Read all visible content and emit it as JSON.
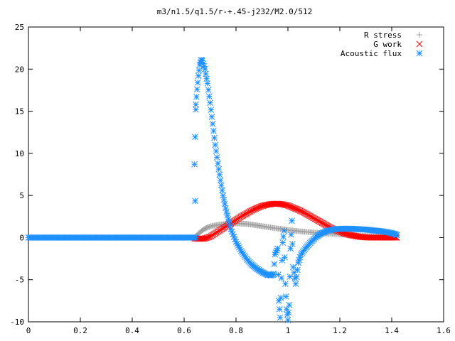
{
  "chart_data": {
    "type": "scatter",
    "title": "m3/n1.5/q1.5/r-+.45-j232/M2.0/512",
    "xlabel": "",
    "ylabel": "",
    "xlim": [
      0,
      1.6
    ],
    "ylim": [
      -10,
      25
    ],
    "xticks": [
      0,
      0.2,
      0.4,
      0.6,
      0.8,
      1,
      1.2,
      1.4,
      1.6
    ],
    "xtick_labels": [
      "0",
      "0.2",
      "0.4",
      "0.6",
      "0.8",
      "1",
      "1.2",
      "1.4",
      "1.6"
    ],
    "yticks": [
      -10,
      -5,
      0,
      5,
      10,
      15,
      20,
      25
    ],
    "ytick_labels": [
      "-10",
      "-5",
      "0",
      "5",
      "10",
      "15",
      "20",
      "25"
    ],
    "grid": false,
    "legend_position": "top-right",
    "series": [
      {
        "name": "R stress",
        "marker": "plus",
        "color": "#a0a0a0",
        "points": [
          [
            0.64,
            0
          ],
          [
            0.65,
            0.3
          ],
          [
            0.66,
            0.6
          ],
          [
            0.67,
            0.85
          ],
          [
            0.68,
            1.05
          ],
          [
            0.69,
            1.2
          ],
          [
            0.7,
            1.32
          ],
          [
            0.72,
            1.45
          ],
          [
            0.74,
            1.55
          ],
          [
            0.76,
            1.62
          ],
          [
            0.78,
            1.67
          ],
          [
            0.8,
            1.68
          ],
          [
            0.82,
            1.67
          ],
          [
            0.84,
            1.62
          ],
          [
            0.86,
            1.55
          ],
          [
            0.88,
            1.45
          ],
          [
            0.9,
            1.35
          ],
          [
            0.92,
            1.25
          ],
          [
            0.95,
            1.12
          ],
          [
            0.98,
            1.0
          ],
          [
            1.0,
            0.9
          ],
          [
            1.03,
            0.8
          ],
          [
            1.06,
            0.7
          ],
          [
            1.1,
            0.6
          ],
          [
            1.14,
            0.5
          ],
          [
            1.18,
            0.42
          ],
          [
            1.22,
            0.34
          ],
          [
            1.26,
            0.27
          ],
          [
            1.3,
            0.2
          ],
          [
            1.34,
            0.14
          ],
          [
            1.38,
            0.09
          ],
          [
            1.42,
            0.05
          ]
        ]
      },
      {
        "name": "G work",
        "marker": "cross",
        "color": "#ff0000",
        "points": [
          [
            0.64,
            -0.1
          ],
          [
            0.66,
            -0.15
          ],
          [
            0.68,
            -0.1
          ],
          [
            0.7,
            0.1
          ],
          [
            0.72,
            0.5
          ],
          [
            0.74,
            0.9
          ],
          [
            0.76,
            1.3
          ],
          [
            0.78,
            1.7
          ],
          [
            0.8,
            2.1
          ],
          [
            0.82,
            2.5
          ],
          [
            0.84,
            2.85
          ],
          [
            0.86,
            3.2
          ],
          [
            0.88,
            3.5
          ],
          [
            0.9,
            3.75
          ],
          [
            0.92,
            3.9
          ],
          [
            0.94,
            4.0
          ],
          [
            0.96,
            4.02
          ],
          [
            0.98,
            3.95
          ],
          [
            1.0,
            3.8
          ],
          [
            1.02,
            3.55
          ],
          [
            1.04,
            3.3
          ],
          [
            1.06,
            3.0
          ],
          [
            1.08,
            2.65
          ],
          [
            1.1,
            2.3
          ],
          [
            1.12,
            1.95
          ],
          [
            1.14,
            1.6
          ],
          [
            1.16,
            1.25
          ],
          [
            1.18,
            0.95
          ],
          [
            1.2,
            0.7
          ],
          [
            1.22,
            0.48
          ],
          [
            1.24,
            0.3
          ],
          [
            1.26,
            0.18
          ],
          [
            1.28,
            0.08
          ],
          [
            1.3,
            0.02
          ],
          [
            1.32,
            0.0
          ],
          [
            1.34,
            0.0
          ],
          [
            1.36,
            0.0
          ],
          [
            1.38,
            0.0
          ],
          [
            1.4,
            0.0
          ],
          [
            1.42,
            0.0
          ]
        ]
      },
      {
        "name": "Acoustic flux",
        "marker": "star",
        "color": "#1e90ff",
        "points": [
          [
            0.0,
            0
          ],
          [
            0.1,
            0
          ],
          [
            0.2,
            0
          ],
          [
            0.3,
            0
          ],
          [
            0.4,
            0
          ],
          [
            0.5,
            0
          ],
          [
            0.6,
            0
          ],
          [
            0.645,
            0
          ],
          [
            0.64,
            8.7
          ],
          [
            0.645,
            15.2
          ],
          [
            0.645,
            15.8
          ],
          [
            0.65,
            17.6
          ],
          [
            0.655,
            19.2
          ],
          [
            0.66,
            20.5
          ],
          [
            0.665,
            21.1
          ],
          [
            0.67,
            21.0
          ],
          [
            0.68,
            20.0
          ],
          [
            0.69,
            18.3
          ],
          [
            0.7,
            16.0
          ],
          [
            0.71,
            13.5
          ],
          [
            0.72,
            11.0
          ],
          [
            0.73,
            8.8
          ],
          [
            0.74,
            6.8
          ],
          [
            0.75,
            5.0
          ],
          [
            0.76,
            3.5
          ],
          [
            0.77,
            2.2
          ],
          [
            0.78,
            1.0
          ],
          [
            0.8,
            -0.5
          ],
          [
            0.82,
            -1.6
          ],
          [
            0.84,
            -2.5
          ],
          [
            0.86,
            -3.2
          ],
          [
            0.88,
            -3.7
          ],
          [
            0.9,
            -4.1
          ],
          [
            0.92,
            -4.4
          ],
          [
            0.935,
            -4.5
          ],
          [
            0.945,
            -4.3
          ],
          [
            0.95,
            -2.0
          ],
          [
            0.96,
            -1.3
          ],
          [
            0.965,
            -7.5
          ],
          [
            0.97,
            -9.5
          ],
          [
            0.975,
            -4.8
          ],
          [
            0.98,
            -0.6
          ],
          [
            0.985,
            0.8
          ],
          [
            0.99,
            -5.5
          ],
          [
            0.995,
            -8.5
          ],
          [
            1.0,
            -9.8
          ],
          [
            1.005,
            -8.0
          ],
          [
            1.01,
            -1.3
          ],
          [
            1.015,
            2.0
          ],
          [
            1.02,
            -3.5
          ],
          [
            1.03,
            -5.5
          ],
          [
            1.04,
            -3.0
          ],
          [
            1.05,
            -2.0
          ],
          [
            1.07,
            -1.2
          ],
          [
            1.09,
            -0.5
          ],
          [
            1.11,
            0.1
          ],
          [
            1.13,
            0.5
          ],
          [
            1.15,
            0.8
          ],
          [
            1.18,
            1.0
          ],
          [
            1.21,
            1.05
          ],
          [
            1.24,
            1.05
          ],
          [
            1.27,
            1.0
          ],
          [
            1.3,
            0.95
          ],
          [
            1.33,
            0.85
          ],
          [
            1.36,
            0.75
          ],
          [
            1.39,
            0.6
          ],
          [
            1.41,
            0.45
          ],
          [
            1.42,
            0.3
          ]
        ]
      }
    ]
  }
}
